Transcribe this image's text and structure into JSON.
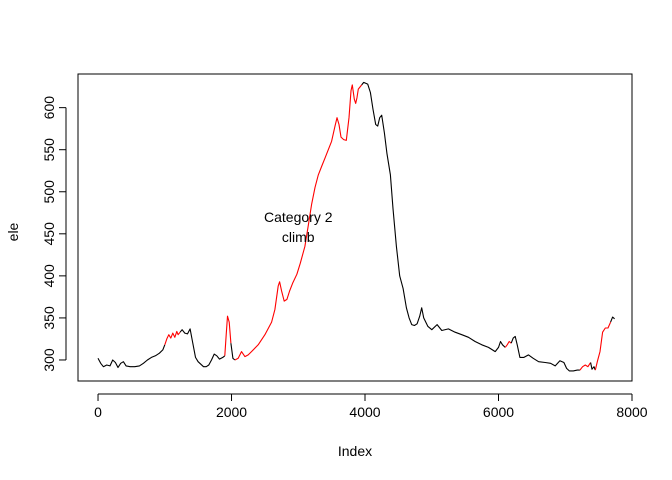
{
  "chart_data": {
    "type": "line",
    "title": "",
    "xlabel": "Index",
    "ylabel": "ele",
    "xlim": [
      -300,
      8000
    ],
    "ylim": [
      275,
      640
    ],
    "x_ticks": [
      0,
      2000,
      4000,
      6000,
      8000
    ],
    "y_ticks": [
      300,
      350,
      400,
      450,
      500,
      550,
      600
    ],
    "annotation": {
      "lines": [
        "Category 2",
        "climb"
      ],
      "x": 3000,
      "y_top": 470
    },
    "colors": {
      "base": "#000000",
      "highlight": "#ff0000",
      "axis": "#000000"
    },
    "series": [
      {
        "color": "base",
        "points": [
          [
            0,
            302
          ],
          [
            40,
            296
          ],
          [
            80,
            292
          ],
          [
            130,
            294
          ],
          [
            180,
            293
          ],
          [
            220,
            300
          ],
          [
            260,
            297
          ],
          [
            300,
            291
          ],
          [
            340,
            296
          ],
          [
            380,
            298
          ],
          [
            420,
            293
          ],
          [
            480,
            292
          ],
          [
            550,
            292
          ],
          [
            620,
            293
          ],
          [
            680,
            296
          ],
          [
            740,
            300
          ],
          [
            800,
            303
          ],
          [
            860,
            305
          ],
          [
            920,
            308
          ],
          [
            970,
            312
          ],
          [
            1000,
            318
          ]
        ]
      },
      {
        "color": "highlight",
        "points": [
          [
            1000,
            318
          ],
          [
            1030,
            325
          ],
          [
            1060,
            330
          ],
          [
            1090,
            326
          ],
          [
            1120,
            332
          ],
          [
            1150,
            327
          ],
          [
            1180,
            334
          ],
          [
            1200,
            330
          ],
          [
            1230,
            333
          ]
        ]
      },
      {
        "color": "base",
        "points": [
          [
            1230,
            333
          ],
          [
            1260,
            336
          ],
          [
            1300,
            332
          ],
          [
            1340,
            331
          ],
          [
            1380,
            337
          ],
          [
            1420,
            320
          ],
          [
            1460,
            303
          ],
          [
            1500,
            298
          ],
          [
            1540,
            295
          ],
          [
            1580,
            292
          ],
          [
            1620,
            292
          ],
          [
            1660,
            294
          ],
          [
            1700,
            300
          ],
          [
            1740,
            307
          ],
          [
            1780,
            305
          ],
          [
            1820,
            301
          ],
          [
            1870,
            303
          ],
          [
            1900,
            305
          ]
        ]
      },
      {
        "color": "highlight",
        "points": [
          [
            1900,
            305
          ],
          [
            1920,
            330
          ],
          [
            1940,
            352
          ],
          [
            1965,
            345
          ],
          [
            1990,
            320
          ]
        ]
      },
      {
        "color": "base",
        "points": [
          [
            1990,
            320
          ],
          [
            2020,
            302
          ],
          [
            2050,
            300
          ]
        ]
      },
      {
        "color": "highlight",
        "points": [
          [
            2050,
            300
          ],
          [
            2100,
            302
          ],
          [
            2150,
            310
          ],
          [
            2200,
            304
          ],
          [
            2250,
            306
          ],
          [
            2300,
            310
          ],
          [
            2400,
            318
          ],
          [
            2500,
            330
          ],
          [
            2600,
            345
          ],
          [
            2650,
            360
          ],
          [
            2700,
            388
          ],
          [
            2720,
            393
          ],
          [
            2750,
            382
          ],
          [
            2790,
            370
          ],
          [
            2830,
            372
          ],
          [
            2870,
            382
          ],
          [
            2920,
            392
          ],
          [
            2980,
            402
          ],
          [
            3030,
            415
          ],
          [
            3100,
            435
          ],
          [
            3150,
            460
          ],
          [
            3200,
            485
          ],
          [
            3250,
            505
          ],
          [
            3300,
            520
          ],
          [
            3350,
            530
          ],
          [
            3400,
            540
          ],
          [
            3450,
            550
          ],
          [
            3500,
            560
          ],
          [
            3550,
            578
          ],
          [
            3580,
            588
          ],
          [
            3610,
            580
          ],
          [
            3640,
            565
          ],
          [
            3680,
            562
          ],
          [
            3720,
            561
          ],
          [
            3760,
            588
          ],
          [
            3790,
            620
          ],
          [
            3810,
            627
          ],
          [
            3840,
            610
          ],
          [
            3860,
            605
          ],
          [
            3880,
            612
          ],
          [
            3900,
            622
          ],
          [
            3930,
            625
          ],
          [
            3950,
            627
          ]
        ]
      },
      {
        "color": "base",
        "points": [
          [
            3950,
            627
          ],
          [
            3980,
            630
          ],
          [
            4010,
            629
          ],
          [
            4040,
            628
          ],
          [
            4080,
            618
          ],
          [
            4120,
            598
          ],
          [
            4160,
            580
          ],
          [
            4190,
            578
          ],
          [
            4220,
            588
          ],
          [
            4250,
            591
          ],
          [
            4290,
            570
          ],
          [
            4330,
            545
          ],
          [
            4380,
            520
          ],
          [
            4420,
            480
          ],
          [
            4470,
            435
          ],
          [
            4520,
            400
          ],
          [
            4570,
            385
          ],
          [
            4620,
            362
          ],
          [
            4660,
            350
          ],
          [
            4700,
            342
          ],
          [
            4740,
            341
          ],
          [
            4780,
            343
          ],
          [
            4820,
            352
          ],
          [
            4850,
            362
          ],
          [
            4880,
            350
          ],
          [
            4940,
            340
          ],
          [
            5000,
            336
          ],
          [
            5080,
            342
          ],
          [
            5150,
            335
          ],
          [
            5250,
            337
          ],
          [
            5350,
            333
          ],
          [
            5450,
            330
          ],
          [
            5550,
            327
          ],
          [
            5650,
            322
          ],
          [
            5750,
            318
          ],
          [
            5850,
            315
          ],
          [
            5950,
            310
          ],
          [
            6000,
            315
          ],
          [
            6030,
            322
          ],
          [
            6060,
            318
          ],
          [
            6100,
            315
          ]
        ]
      },
      {
        "color": "highlight",
        "points": [
          [
            6100,
            315
          ],
          [
            6130,
            318
          ],
          [
            6160,
            322
          ],
          [
            6190,
            320
          ]
        ]
      },
      {
        "color": "base",
        "points": [
          [
            6190,
            320
          ],
          [
            6220,
            326
          ],
          [
            6250,
            328
          ],
          [
            6280,
            318
          ],
          [
            6320,
            303
          ],
          [
            6380,
            303
          ],
          [
            6450,
            306
          ],
          [
            6520,
            302
          ],
          [
            6600,
            298
          ],
          [
            6700,
            297
          ],
          [
            6780,
            296
          ],
          [
            6850,
            293
          ],
          [
            6920,
            299
          ],
          [
            6980,
            297
          ],
          [
            7020,
            290
          ],
          [
            7060,
            287
          ],
          [
            7120,
            287
          ],
          [
            7180,
            288
          ],
          [
            7220,
            288
          ]
        ]
      },
      {
        "color": "highlight",
        "points": [
          [
            7220,
            288
          ],
          [
            7260,
            292
          ],
          [
            7300,
            294
          ],
          [
            7340,
            292
          ],
          [
            7380,
            297
          ]
        ]
      },
      {
        "color": "base",
        "points": [
          [
            7380,
            297
          ],
          [
            7400,
            289
          ],
          [
            7430,
            292
          ],
          [
            7450,
            288
          ]
        ]
      },
      {
        "color": "highlight",
        "points": [
          [
            7450,
            288
          ],
          [
            7480,
            298
          ],
          [
            7520,
            310
          ],
          [
            7560,
            333
          ],
          [
            7600,
            338
          ],
          [
            7640,
            338
          ],
          [
            7680,
            345
          ]
        ]
      },
      {
        "color": "base",
        "points": [
          [
            7680,
            345
          ],
          [
            7710,
            351
          ],
          [
            7740,
            349
          ]
        ]
      }
    ]
  }
}
